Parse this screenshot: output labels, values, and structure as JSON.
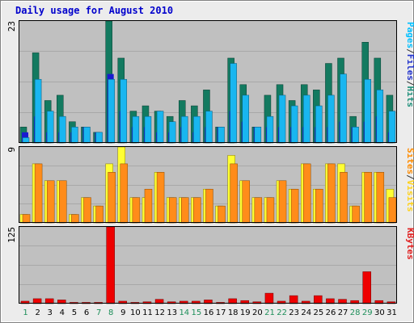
{
  "title": "Daily usage for August 2010",
  "legend": {
    "top": [
      {
        "text": "Pages",
        "color": "#00bfff"
      },
      {
        "text": "/",
        "color": "#333333"
      },
      {
        "text": "Files",
        "color": "#2233cc"
      },
      {
        "text": "/",
        "color": "#333333"
      },
      {
        "text": "Hits",
        "color": "#1e8f7a"
      }
    ],
    "middle": [
      {
        "text": "Sites",
        "color": "#ff8c00"
      },
      {
        "text": "/",
        "color": "#333333"
      },
      {
        "text": "Visits",
        "color": "#ffd21a"
      }
    ],
    "bottom": [
      {
        "text": "KBytes",
        "color": "#e02020"
      }
    ]
  },
  "colors": {
    "hits": "#137a60",
    "files": "#1a1ad0",
    "pages": "#19b6f0",
    "visits": "#ffff33",
    "sites": "#ff8c1a",
    "kbytes": "#ee0000",
    "panel_bg": "#c0c0c0",
    "frame_bg": "#ececec",
    "weekend_day": "#1e8f5a",
    "weekday_day": "#000000"
  },
  "chart_data": [
    {
      "type": "bar",
      "title": "Daily usage for August 2010",
      "panel": "pages-files-hits",
      "ymax_label": "23",
      "ylim": [
        0,
        23
      ],
      "categories": [
        "1",
        "2",
        "3",
        "4",
        "5",
        "6",
        "7",
        "8",
        "9",
        "10",
        "11",
        "12",
        "13",
        "14",
        "15",
        "16",
        "17",
        "18",
        "19",
        "20",
        "21",
        "22",
        "23",
        "24",
        "25",
        "26",
        "27",
        "28",
        "29",
        "30",
        "31"
      ],
      "series": [
        {
          "name": "Hits",
          "values": [
            3,
            17,
            8,
            9,
            4,
            3,
            2,
            23,
            16,
            6,
            7,
            6,
            5,
            8,
            7,
            10,
            3,
            16,
            11,
            3,
            9,
            11,
            8,
            11,
            10,
            15,
            16,
            5,
            19,
            16,
            9
          ]
        },
        {
          "name": "Files",
          "values": [
            2,
            5,
            2,
            2,
            2,
            3,
            2,
            13,
            6,
            3,
            3,
            2,
            2,
            3,
            2,
            3,
            3,
            6,
            4,
            3,
            3,
            3,
            3,
            3,
            3,
            3,
            4,
            3,
            4,
            5,
            2
          ]
        },
        {
          "name": "Pages",
          "values": [
            1,
            12,
            6,
            5,
            3,
            3,
            2,
            12,
            12,
            5,
            5,
            6,
            4,
            5,
            5,
            6,
            3,
            15,
            9,
            3,
            5,
            9,
            7,
            9,
            7,
            9,
            13,
            3,
            12,
            10,
            6
          ]
        }
      ]
    },
    {
      "type": "bar",
      "panel": "sites-visits",
      "ymax_label": "9",
      "ylim": [
        0,
        9
      ],
      "categories": [
        "1",
        "2",
        "3",
        "4",
        "5",
        "6",
        "7",
        "8",
        "9",
        "10",
        "11",
        "12",
        "13",
        "14",
        "15",
        "16",
        "17",
        "18",
        "19",
        "20",
        "21",
        "22",
        "23",
        "24",
        "25",
        "26",
        "27",
        "28",
        "29",
        "30",
        "31"
      ],
      "series": [
        {
          "name": "Visits",
          "values": [
            1,
            7,
            5,
            5,
            1,
            3,
            2,
            7,
            9,
            3,
            3,
            6,
            3,
            3,
            3,
            4,
            2,
            8,
            5,
            3,
            3,
            5,
            4,
            7,
            4,
            7,
            7,
            2,
            6,
            6,
            4
          ]
        },
        {
          "name": "Sites",
          "values": [
            1,
            7,
            5,
            5,
            1,
            3,
            2,
            6,
            7,
            3,
            4,
            6,
            3,
            3,
            3,
            4,
            2,
            7,
            5,
            3,
            3,
            5,
            4,
            7,
            4,
            7,
            6,
            2,
            6,
            6,
            3
          ]
        }
      ]
    },
    {
      "type": "bar",
      "panel": "kbytes",
      "ymax_label": "125",
      "ylim": [
        0,
        125
      ],
      "categories": [
        "1",
        "2",
        "3",
        "4",
        "5",
        "6",
        "7",
        "8",
        "9",
        "10",
        "11",
        "12",
        "13",
        "14",
        "15",
        "16",
        "17",
        "18",
        "19",
        "20",
        "21",
        "22",
        "23",
        "24",
        "25",
        "26",
        "27",
        "28",
        "29",
        "30",
        "31"
      ],
      "series": [
        {
          "name": "KBytes",
          "values": [
            4,
            8,
            8,
            6,
            2,
            2,
            2,
            125,
            4,
            2,
            3,
            7,
            3,
            4,
            4,
            6,
            2,
            8,
            5,
            3,
            17,
            4,
            13,
            4,
            13,
            8,
            7,
            5,
            52,
            5,
            3
          ]
        }
      ]
    }
  ],
  "x_axis": {
    "days": [
      "1",
      "2",
      "3",
      "4",
      "5",
      "6",
      "7",
      "8",
      "9",
      "10",
      "11",
      "12",
      "13",
      "14",
      "15",
      "16",
      "17",
      "18",
      "19",
      "20",
      "21",
      "22",
      "23",
      "24",
      "25",
      "26",
      "27",
      "28",
      "29",
      "30",
      "31"
    ],
    "weekend": [
      1,
      7,
      8,
      14,
      15,
      21,
      22,
      28,
      29
    ]
  }
}
